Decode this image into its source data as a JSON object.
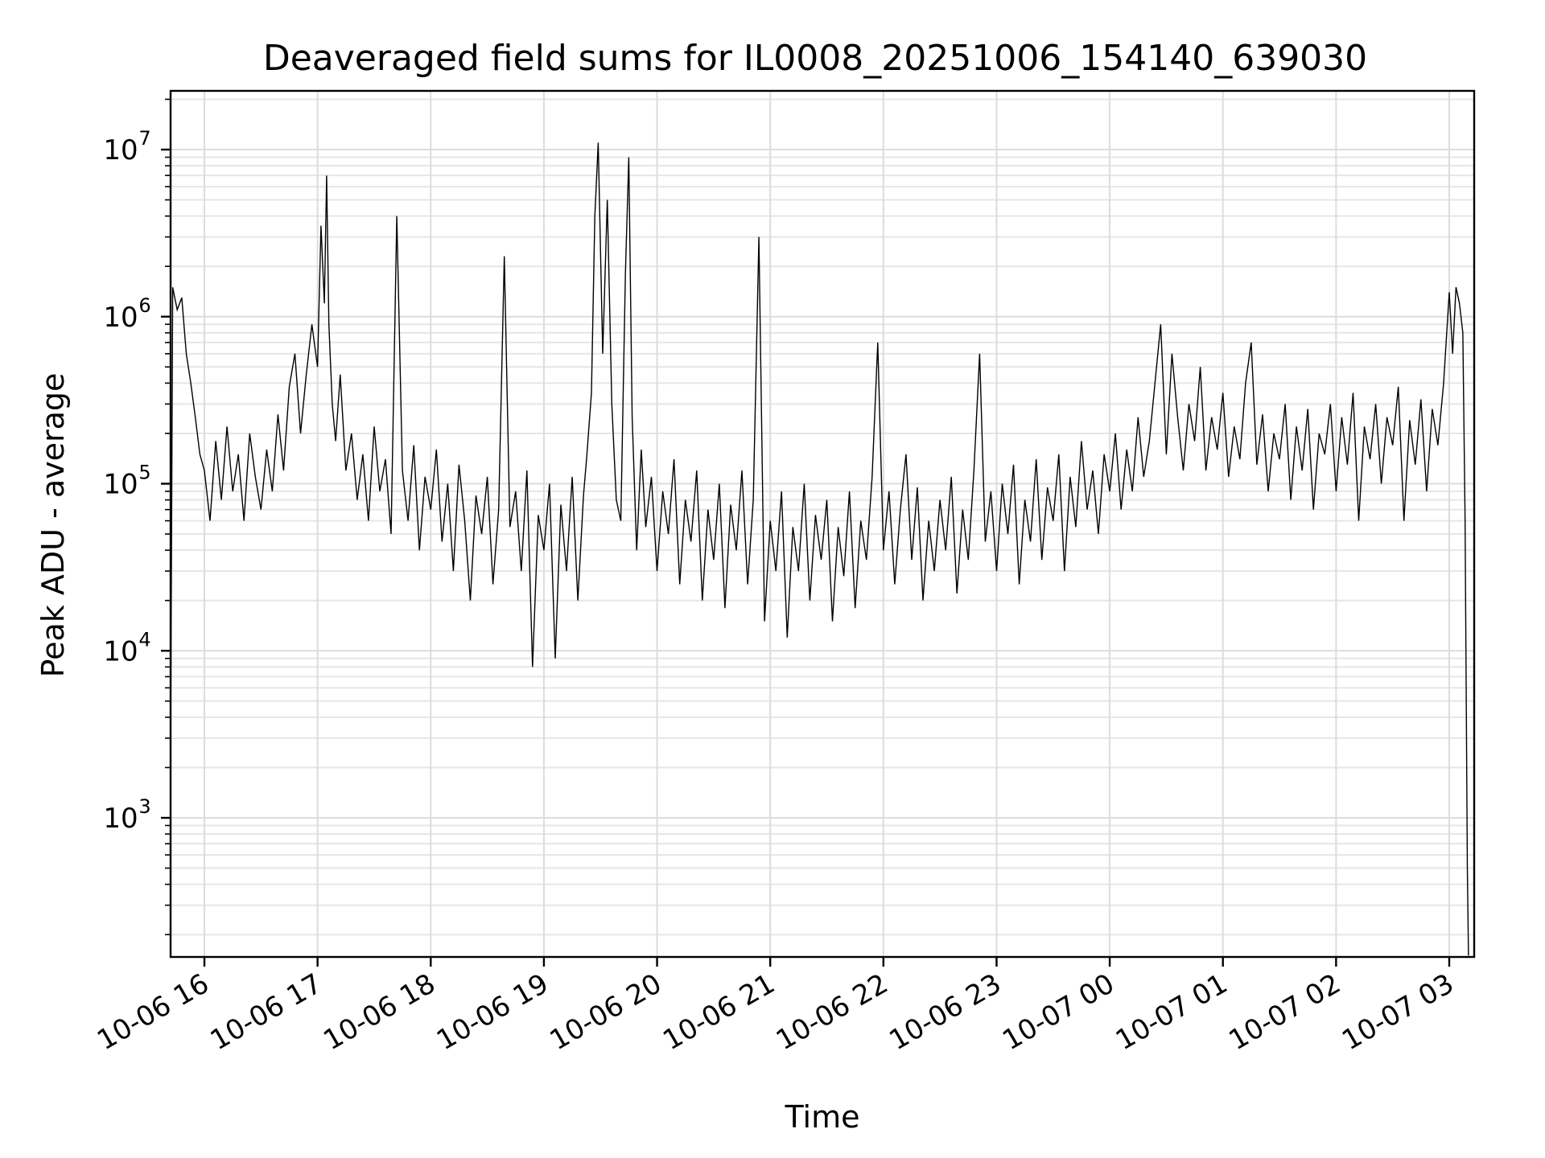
{
  "chart_data": {
    "type": "line",
    "title": "Deaveraged field sums for IL0008_20251006_154140_639030",
    "xlabel": "Time",
    "ylabel": "Peak ADU - average",
    "yscale": "log",
    "ylim": [
      150,
      20000000
    ],
    "xlim_hours": [
      15.7,
      27.2
    ],
    "grid": true,
    "y_ticks": [
      {
        "value": 1000,
        "base": "10",
        "exp": "3"
      },
      {
        "value": 10000,
        "base": "10",
        "exp": "4"
      },
      {
        "value": 100000,
        "base": "10",
        "exp": "5"
      },
      {
        "value": 1000000,
        "base": "10",
        "exp": "6"
      },
      {
        "value": 10000000,
        "base": "10",
        "exp": "7"
      }
    ],
    "x_ticks": [
      {
        "hour": 16,
        "label": "10-06 16"
      },
      {
        "hour": 17,
        "label": "10-06 17"
      },
      {
        "hour": 18,
        "label": "10-06 18"
      },
      {
        "hour": 19,
        "label": "10-06 19"
      },
      {
        "hour": 20,
        "label": "10-06 20"
      },
      {
        "hour": 21,
        "label": "10-06 21"
      },
      {
        "hour": 22,
        "label": "10-06 22"
      },
      {
        "hour": 23,
        "label": "10-06 23"
      },
      {
        "hour": 24,
        "label": "10-07 00"
      },
      {
        "hour": 25,
        "label": "10-07 01"
      },
      {
        "hour": 26,
        "label": "10-07 02"
      },
      {
        "hour": 27,
        "label": "10-07 03"
      }
    ],
    "series": [
      {
        "name": "field sums",
        "color": "#000000",
        "x_hours": [
          15.7,
          15.72,
          15.76,
          15.8,
          15.84,
          15.88,
          15.92,
          15.96,
          16.0,
          16.05,
          16.1,
          16.15,
          16.2,
          16.25,
          16.3,
          16.35,
          16.4,
          16.45,
          16.5,
          16.55,
          16.6,
          16.65,
          16.7,
          16.75,
          16.8,
          16.85,
          16.9,
          16.95,
          17.0,
          17.03,
          17.06,
          17.08,
          17.1,
          17.13,
          17.16,
          17.2,
          17.25,
          17.3,
          17.35,
          17.4,
          17.45,
          17.5,
          17.55,
          17.6,
          17.65,
          17.7,
          17.75,
          17.8,
          17.85,
          17.9,
          17.95,
          18.0,
          18.05,
          18.1,
          18.15,
          18.2,
          18.25,
          18.3,
          18.35,
          18.4,
          18.45,
          18.5,
          18.55,
          18.6,
          18.65,
          18.7,
          18.75,
          18.8,
          18.85,
          18.9,
          18.95,
          19.0,
          19.05,
          19.1,
          19.15,
          19.2,
          19.25,
          19.3,
          19.35,
          19.38,
          19.42,
          19.45,
          19.48,
          19.52,
          19.56,
          19.6,
          19.64,
          19.68,
          19.72,
          19.75,
          19.78,
          19.82,
          19.86,
          19.9,
          19.95,
          20.0,
          20.05,
          20.1,
          20.15,
          20.2,
          20.25,
          20.3,
          20.35,
          20.4,
          20.45,
          20.5,
          20.55,
          20.6,
          20.65,
          20.7,
          20.75,
          20.8,
          20.85,
          20.9,
          20.95,
          21.0,
          21.05,
          21.1,
          21.15,
          21.2,
          21.25,
          21.3,
          21.35,
          21.4,
          21.45,
          21.5,
          21.55,
          21.6,
          21.65,
          21.7,
          21.75,
          21.8,
          21.85,
          21.9,
          21.95,
          22.0,
          22.05,
          22.1,
          22.15,
          22.2,
          22.25,
          22.3,
          22.35,
          22.4,
          22.45,
          22.5,
          22.55,
          22.6,
          22.65,
          22.7,
          22.75,
          22.8,
          22.85,
          22.9,
          22.95,
          23.0,
          23.05,
          23.1,
          23.15,
          23.2,
          23.25,
          23.3,
          23.35,
          23.4,
          23.45,
          23.5,
          23.55,
          23.6,
          23.65,
          23.7,
          23.75,
          23.8,
          23.85,
          23.9,
          23.95,
          24.0,
          24.05,
          24.1,
          24.15,
          24.2,
          24.25,
          24.3,
          24.35,
          24.4,
          24.45,
          24.5,
          24.55,
          24.6,
          24.65,
          24.7,
          24.75,
          24.8,
          24.85,
          24.9,
          24.95,
          25.0,
          25.05,
          25.1,
          25.15,
          25.2,
          25.25,
          25.3,
          25.35,
          25.4,
          25.45,
          25.5,
          25.55,
          25.6,
          25.65,
          25.7,
          25.75,
          25.8,
          25.85,
          25.9,
          25.95,
          26.0,
          26.05,
          26.1,
          26.15,
          26.2,
          26.25,
          26.3,
          26.35,
          26.4,
          26.45,
          26.5,
          26.55,
          26.6,
          26.65,
          26.7,
          26.75,
          26.8,
          26.85,
          26.9,
          26.95,
          27.0,
          27.03,
          27.06,
          27.09,
          27.12,
          27.14,
          27.16,
          27.17
        ],
        "y": [
          1500,
          1500000,
          1100000,
          1300000,
          600000,
          400000,
          250000,
          150000,
          120000,
          60000,
          180000,
          80000,
          220000,
          90000,
          150000,
          60000,
          200000,
          110000,
          70000,
          160000,
          90000,
          260000,
          120000,
          380000,
          600000,
          200000,
          450000,
          900000,
          500000,
          3500000,
          1200000,
          7000000,
          900000,
          300000,
          180000,
          450000,
          120000,
          200000,
          80000,
          150000,
          60000,
          220000,
          90000,
          140000,
          50000,
          4000000,
          120000,
          60000,
          170000,
          40000,
          110000,
          70000,
          160000,
          45000,
          100000,
          30000,
          130000,
          60000,
          20000,
          85000,
          50000,
          110000,
          25000,
          70000,
          2300000,
          55000,
          90000,
          30000,
          120000,
          8000,
          65000,
          40000,
          100000,
          9000,
          75000,
          30000,
          110000,
          20000,
          85000,
          150000,
          350000,
          4000000,
          11000000,
          600000,
          5000000,
          300000,
          80000,
          60000,
          1800000,
          9000000,
          250000,
          40000,
          160000,
          55000,
          110000,
          30000,
          90000,
          50000,
          140000,
          25000,
          80000,
          45000,
          120000,
          20000,
          70000,
          35000,
          100000,
          18000,
          75000,
          40000,
          120000,
          25000,
          80000,
          3000000,
          15000,
          60000,
          30000,
          90000,
          12000,
          55000,
          30000,
          100000,
          20000,
          65000,
          35000,
          80000,
          15000,
          55000,
          28000,
          90000,
          18000,
          60000,
          35000,
          110000,
          700000,
          40000,
          90000,
          25000,
          70000,
          150000,
          35000,
          95000,
          20000,
          60000,
          30000,
          80000,
          40000,
          110000,
          22000,
          70000,
          35000,
          120000,
          600000,
          45000,
          90000,
          30000,
          100000,
          50000,
          130000,
          25000,
          80000,
          45000,
          140000,
          35000,
          95000,
          60000,
          150000,
          30000,
          110000,
          55000,
          180000,
          70000,
          120000,
          50000,
          150000,
          90000,
          200000,
          70000,
          160000,
          90000,
          250000,
          110000,
          180000,
          400000,
          900000,
          150000,
          600000,
          250000,
          120000,
          300000,
          180000,
          500000,
          120000,
          250000,
          160000,
          350000,
          110000,
          220000,
          140000,
          400000,
          700000,
          130000,
          260000,
          90000,
          200000,
          140000,
          300000,
          80000,
          220000,
          120000,
          280000,
          70000,
          200000,
          150000,
          300000,
          90000,
          250000,
          130000,
          350000,
          60000,
          220000,
          140000,
          300000,
          100000,
          250000,
          170000,
          380000,
          60000,
          240000,
          130000,
          320000,
          90000,
          280000,
          170000,
          400000,
          1400000,
          600000,
          1500000,
          1200000,
          800000,
          60000,
          500,
          150
        ]
      }
    ]
  }
}
